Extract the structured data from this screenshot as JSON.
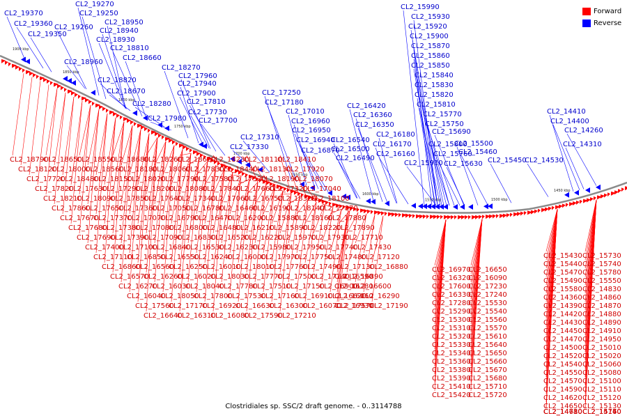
{
  "caption": "Clostridiales sp. SSC/2 draft genome. - 0..3114788",
  "legend": [
    {
      "label": "Forward",
      "color": "#ff0000"
    },
    {
      "label": "Reverse",
      "color": "#0000ff"
    }
  ],
  "kbp_ticks": [
    "1900 kbp",
    "1850 kbp",
    "1800 kbp",
    "1750 kbp",
    "1700 kbp",
    "1650 kbp",
    "1600 kbp",
    "1550 kbp",
    "1500 kbp",
    "1450 kbp"
  ],
  "reverse_labels": [
    "CL2_19370",
    "CL2_19270",
    "CL2_19250",
    "CL2_19360",
    "CL2_19260",
    "CL2_18950",
    "CL2_19350",
    "CL2_18940",
    "CL2_18930",
    "CL2_18810",
    "CL2_18960",
    "CL2_18660",
    "CL2_18270",
    "CL2_18820",
    "CL2_17960",
    "CL2_17940",
    "CL2_18670",
    "CL2_17900",
    "CL2_17810",
    "CL2_18280",
    "CL2_17730",
    "CL2_17980",
    "CL2_17700",
    "CL2_17250",
    "CL2_17180",
    "CL2_17010",
    "CL2_16960",
    "CL2_16950",
    "CL2_17310",
    "CL2_16940",
    "CL2_17330",
    "CL2_16870",
    "CL2_16420",
    "CL2_16360",
    "CL2_16350",
    "CL2_16180",
    "CL2_16170",
    "CL2_16540",
    "CL2_16500",
    "CL2_16160",
    "CL2_16490",
    "CL2_15990",
    "CL2_15930",
    "CL2_15920",
    "CL2_15900",
    "CL2_15870",
    "CL2_15860",
    "CL2_15850",
    "CL2_15840",
    "CL2_15830",
    "CL2_15820",
    "CL2_15810",
    "CL2_15770",
    "CL2_15750",
    "CL2_15690",
    "CL2_15800",
    "CL2_15500",
    "CL2_15760",
    "CL2_15460",
    "CL2_15910",
    "CL2_15630",
    "CL2_15450",
    "CL2_14410",
    "CL2_14400",
    "CL2_14260",
    "CL2_14310",
    "CL2_14530"
  ],
  "forward_labels": [
    "CL2_18790",
    "CL2_18650",
    "CL2_18550",
    "CL2_18680",
    "CL2_18260",
    "CL2_18620",
    "CL2_18230",
    "CL2_18110",
    "CL2_18410",
    "CL2_18120",
    "CL2_18000",
    "CL2_18560",
    "CL2_18180",
    "CL2_18060",
    "CL2_17830",
    "CL2_18440",
    "CL2_18130",
    "CL2_17920",
    "CL2_17720",
    "CL2_18480",
    "CL2_18150",
    "CL2_18020",
    "CL2_17790",
    "CL2_17580",
    "CL2_17520",
    "CL2_18190",
    "CL2_18070",
    "CL2_17820",
    "CL2_17630",
    "CL2_17290",
    "CL2_18200",
    "CL2_18080",
    "CL2_17840",
    "CL2_17660",
    "CL2_17320",
    "CL2_17040",
    "CL2_18210",
    "CL2_18090",
    "CL2_17850",
    "CL2_17640",
    "CL2_17340",
    "CL2_17060",
    "CL2_16750",
    "CL2_18320",
    "CL2_18100",
    "CL2_17860",
    "CL2_17650",
    "CL2_17360",
    "CL2_17050",
    "CL2_16780",
    "CL2_16460",
    "CL2_16190",
    "CL2_18140",
    "CL2_17870",
    "CL2_17670",
    "CL2_17370",
    "CL2_17070",
    "CL2_16790",
    "CL2_16470",
    "CL2_16200",
    "CL2_15880",
    "CL2_18160",
    "CL2_17880",
    "CL2_17680",
    "CL2_17380",
    "CL2_17080",
    "CL2_16800",
    "CL2_16480",
    "CL2_16210",
    "CL2_15890",
    "CL2_18220",
    "CL2_17890",
    "CL2_17690",
    "CL2_17390",
    "CL2_17090",
    "CL2_16830",
    "CL2_16520",
    "CL2_16220",
    "CL2_15970",
    "CL2_17930",
    "CL2_17710",
    "CL2_17400",
    "CL2_17100",
    "CL2_16840",
    "CL2_16530",
    "CL2_16230",
    "CL2_15980",
    "CL2_17950",
    "CL2_17740",
    "CL2_17430",
    "CL2_17110",
    "CL2_16850",
    "CL2_16550",
    "CL2_16240",
    "CL2_16000",
    "CL2_17970",
    "CL2_17750",
    "CL2_17480",
    "CL2_17120",
    "CL2_16860",
    "CL2_16560",
    "CL2_16250",
    "CL2_16010",
    "CL2_18010",
    "CL2_17760",
    "CL2_17490",
    "CL2_17130",
    "CL2_16880",
    "CL2_16570",
    "CL2_16260",
    "CL2_16020",
    "CL2_18030",
    "CL2_17770",
    "CL2_17500",
    "CL2_17140",
    "CL2_16890",
    "CL2_16590",
    "CL2_16270",
    "CL2_16030",
    "CL2_18040",
    "CL2_17780",
    "CL2_17510",
    "CL2_17150",
    "CL2_16900",
    "CL2_16600",
    "CL2_16280",
    "CL2_16040",
    "CL2_18050",
    "CL2_17800",
    "CL2_17530",
    "CL2_17160",
    "CL2_16910",
    "CL2_16620",
    "CL2_16290",
    "CL2_16060",
    "CL2_17560",
    "CL2_17170",
    "CL2_16920",
    "CL2_16630",
    "CL2_16300",
    "CL2_16070",
    "CL2_17570",
    "CL2_17190",
    "CL2_16930",
    "CL2_16640",
    "CL2_16310",
    "CL2_16080",
    "CL2_17590",
    "CL2_17210",
    "CL2_16970",
    "CL2_16650",
    "CL2_16320",
    "CL2_16090",
    "CL2_17600",
    "CL2_17230",
    "CL2_16330",
    "CL2_17240",
    "CL2_17280",
    "CL2_15530",
    "CL2_15290",
    "CL2_15540",
    "CL2_15300",
    "CL2_15560",
    "CL2_15310",
    "CL2_15570",
    "CL2_15320",
    "CL2_15610",
    "CL2_15330",
    "CL2_15640",
    "CL2_15340",
    "CL2_15650",
    "CL2_15360",
    "CL2_15660",
    "CL2_15380",
    "CL2_15670",
    "CL2_15390",
    "CL2_15680",
    "CL2_15410",
    "CL2_15710",
    "CL2_15420",
    "CL2_15720",
    "CL2_15430",
    "CL2_15730",
    "CL2_15440",
    "CL2_15740",
    "CL2_15470",
    "CL2_15780",
    "CL2_15490",
    "CL2_15550",
    "CL2_15580",
    "CL2_14830",
    "CL2_14360",
    "CL2_14860",
    "CL2_14390",
    "CL2_14870",
    "CL2_14420",
    "CL2_14880",
    "CL2_14430",
    "CL2_14890",
    "CL2_14450",
    "CL2_14910",
    "CL2_14470",
    "CL2_14950",
    "CL2_14500",
    "CL2_15010",
    "CL2_14520",
    "CL2_15020",
    "CL2_14540",
    "CL2_15060",
    "CL2_14550",
    "CL2_15080",
    "CL2_14570",
    "CL2_15100",
    "CL2_14590",
    "CL2_15110",
    "CL2_14620",
    "CL2_15120",
    "CL2_14650",
    "CL2_15130",
    "CL2_14680",
    "CL2_15140",
    "CL2_14710",
    "CL2_15170",
    "CL2_14730",
    "CL2_14760",
    "CL2_14780"
  ]
}
